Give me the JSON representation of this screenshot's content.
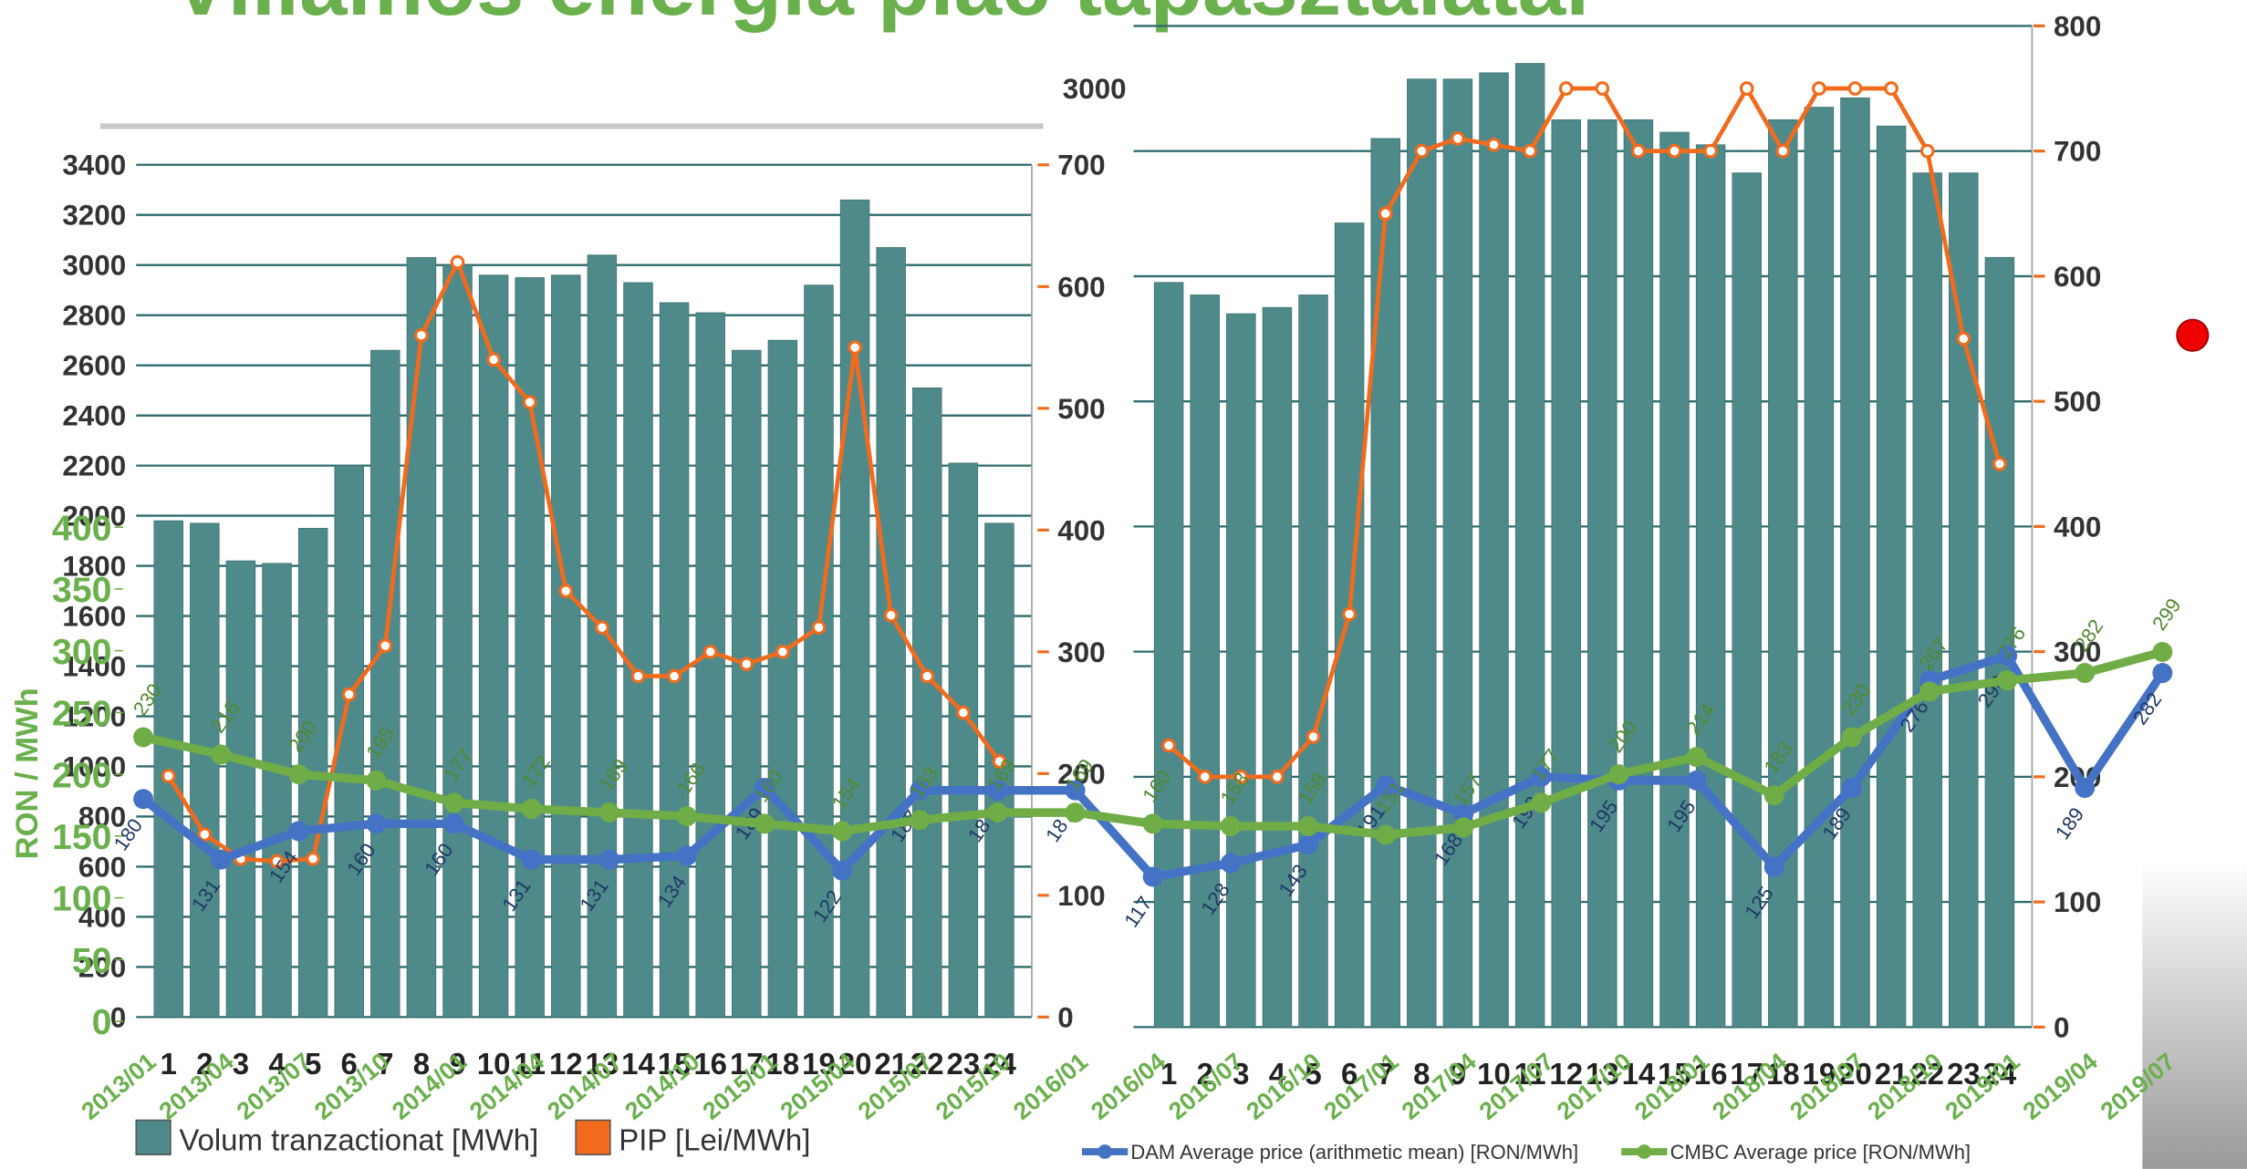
{
  "title": "Villamos energia piac tapasztalatai",
  "chart_data": [
    {
      "type": "bar_line",
      "categories": [
        "1",
        "2",
        "3",
        "4",
        "5",
        "6",
        "7",
        "8",
        "9",
        "10",
        "11",
        "12",
        "13",
        "14",
        "15",
        "16",
        "17",
        "18",
        "19",
        "20",
        "21",
        "22",
        "23",
        "24"
      ],
      "series": [
        {
          "name": "Volum tranzactionat [MWh]",
          "color": "#4f8a8b",
          "values": [
            1980,
            1970,
            1820,
            1810,
            1950,
            2200,
            2660,
            3030,
            3000,
            2960,
            2950,
            2960,
            3040,
            2930,
            2850,
            2810,
            2660,
            2700,
            2920,
            3260,
            3070,
            2510,
            2210,
            1970
          ]
        },
        {
          "name": "PIP [Lei/MWh]",
          "color": "#f26b1d",
          "axis": "y2",
          "values": [
            198,
            150,
            130,
            128,
            130,
            265,
            305,
            560,
            620,
            540,
            505,
            350,
            320,
            280,
            280,
            300,
            290,
            300,
            320,
            550,
            330,
            280,
            250,
            210
          ]
        }
      ],
      "ylim": [
        0,
        3400
      ],
      "yticks": [
        0,
        200,
        400,
        600,
        800,
        1000,
        1200,
        1400,
        1600,
        1800,
        2000,
        2200,
        2400,
        2600,
        2800,
        3000,
        3200,
        3400
      ],
      "y2lim": [
        0,
        700
      ],
      "y2ticks": [
        0,
        100,
        200,
        300,
        400,
        500,
        600,
        700
      ],
      "grid": true,
      "legend": "bottom-left"
    },
    {
      "type": "bar_line",
      "categories": [
        "1",
        "2",
        "3",
        "4",
        "5",
        "6",
        "7",
        "8",
        "9",
        "10",
        "11",
        "12",
        "13",
        "14",
        "15",
        "16",
        "17",
        "18",
        "19",
        "20",
        "21",
        "22",
        "23",
        "24"
      ],
      "series": [
        {
          "color": "#4f8a8b",
          "values": [
            2380,
            2340,
            2280,
            2300,
            2340,
            2570,
            2840,
            3030,
            3030,
            3050,
            3080,
            2900,
            2900,
            2900,
            2860,
            2820,
            2730,
            2900,
            2940,
            2970,
            2880,
            2730,
            2730,
            2460
          ]
        },
        {
          "color": "#f26b1d",
          "axis": "y2",
          "values": [
            225,
            200,
            200,
            200,
            232,
            330,
            650,
            700,
            710,
            705,
            700,
            750,
            750,
            700,
            700,
            700,
            750,
            700,
            750,
            750,
            750,
            700,
            550,
            450
          ]
        }
      ],
      "ylim": [
        0,
        3200
      ],
      "yticks": [
        3000
      ],
      "y2lim": [
        0,
        800
      ],
      "y2ticks": [
        0,
        100,
        200,
        300,
        400,
        500,
        600,
        700,
        800
      ],
      "grid": true
    },
    {
      "type": "line",
      "y_label": "RON / MWh",
      "categories": [
        "2013/01",
        "2013/04",
        "2013/07",
        "2013/10",
        "2014/01",
        "2014/04",
        "2014/07",
        "2014/10",
        "2015/01",
        "2015/04",
        "2015/07",
        "2015/10",
        "2016/01",
        "2016/04",
        "2016/07",
        "2016/10",
        "2017/01",
        "2017/04",
        "2017/07",
        "2017/10",
        "2018/01",
        "2018/04",
        "2018/07",
        "2018/10",
        "2019/01",
        "2019/04",
        "2019/07"
      ],
      "series": [
        {
          "name": "DAM Average price (arithmetic mean) [RON/MWh]",
          "color": "#4472c4",
          "values": [
            180,
            131,
            154,
            160,
            160,
            131,
            131,
            134,
            189,
            122,
            187,
            187,
            187,
            117,
            128,
            143,
            191,
            168,
            198,
            195,
            195,
            125,
            189,
            276,
            296,
            189,
            282
          ]
        },
        {
          "name": "CMBC Average price [RON/MWh]",
          "color": "#70ad47",
          "values": [
            230,
            216,
            200,
            195,
            177,
            172,
            169,
            166,
            160,
            154,
            163,
            169,
            169,
            160,
            158,
            158,
            151,
            157,
            177,
            200,
            214,
            183,
            230,
            267,
            276,
            282,
            299
          ]
        }
      ],
      "ylim": [
        0,
        400
      ],
      "yticks": [
        0,
        50,
        100,
        150,
        200,
        250,
        300,
        350,
        400
      ],
      "data_labels": true,
      "legend": "bottom-right"
    }
  ]
}
